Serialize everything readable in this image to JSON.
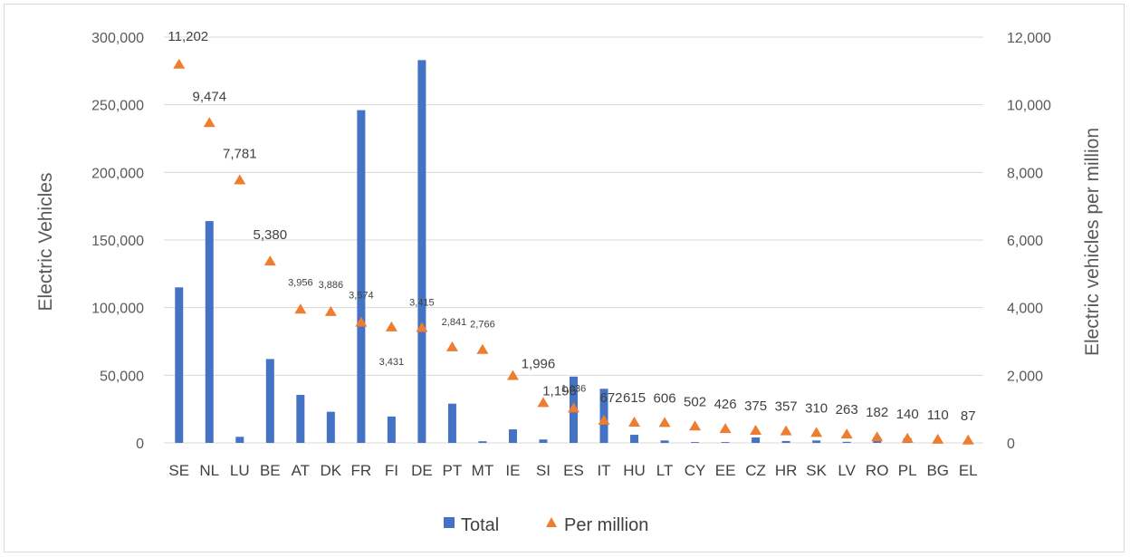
{
  "chart_data": {
    "type": "bar",
    "categories": [
      "SE",
      "NL",
      "LU",
      "BE",
      "AT",
      "DK",
      "FR",
      "FI",
      "DE",
      "PT",
      "MT",
      "IE",
      "SI",
      "ES",
      "IT",
      "HU",
      "LT",
      "CY",
      "EE",
      "CZ",
      "HR",
      "SK",
      "LV",
      "RO",
      "PL",
      "BG",
      "EL"
    ],
    "series": [
      {
        "name": "Total",
        "type": "bar",
        "axis": "left",
        "color": "#4472c4",
        "values": [
          115000,
          164000,
          4500,
          62000,
          35500,
          23000,
          246000,
          19500,
          283000,
          29000,
          1200,
          10000,
          2500,
          49000,
          40000,
          6000,
          1800,
          600,
          600,
          4000,
          1400,
          1800,
          800,
          4000,
          3500,
          1000,
          1000
        ]
      },
      {
        "name": "Per million",
        "type": "scatter",
        "axis": "right",
        "marker": "triangle",
        "color": "#ed7d31",
        "values": [
          11202,
          9474,
          7781,
          5380,
          3956,
          3886,
          3574,
          3431,
          3415,
          2841,
          2766,
          1996,
          1196,
          1036,
          672,
          615,
          606,
          502,
          426,
          375,
          357,
          310,
          263,
          182,
          140,
          110,
          87
        ],
        "labels": [
          "11,202",
          "9,474",
          "7,781",
          "5,380",
          "3,956",
          "3,886",
          "3,574",
          "3,431",
          "3,415",
          "2,841",
          "2,766",
          "1,996",
          "1,196",
          "1,036",
          "672",
          "615",
          "606",
          "502",
          "426",
          "375",
          "357",
          "310",
          "263",
          "182",
          "140",
          "110",
          "87"
        ]
      }
    ],
    "y_left": {
      "label": "Electric Vehicles",
      "lim": [
        0,
        300000
      ],
      "ticks": [
        "0",
        "50,000",
        "100,000",
        "150,000",
        "200,000",
        "250,000",
        "300,000"
      ]
    },
    "y_right": {
      "label": "Electric vehicles per million",
      "lim": [
        0,
        12000
      ],
      "ticks": [
        "0",
        "2,000",
        "4,000",
        "6,000",
        "8,000",
        "10,000",
        "12,000"
      ]
    },
    "grid": true,
    "legend": "bottom"
  }
}
